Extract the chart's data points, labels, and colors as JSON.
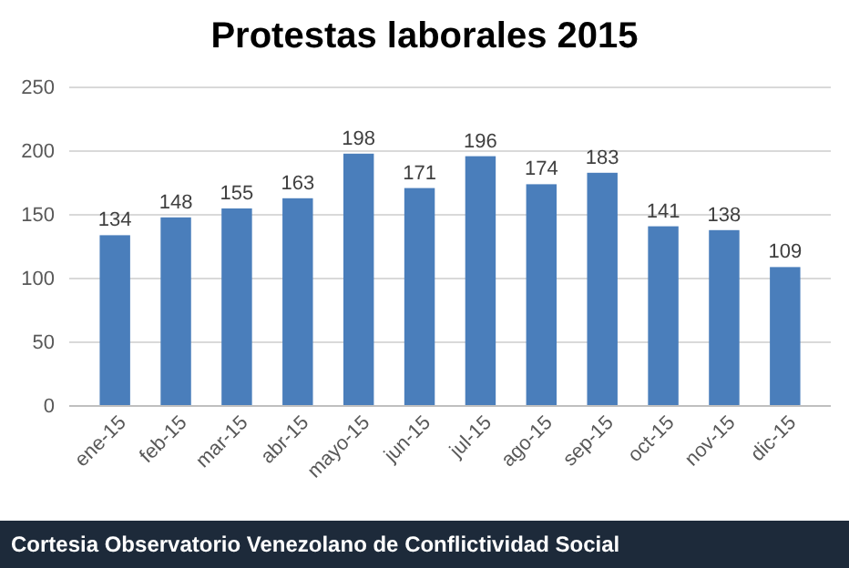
{
  "chart_data": {
    "type": "bar",
    "title": "Protestas laborales 2015",
    "categories": [
      "ene-15",
      "feb-15",
      "mar-15",
      "abr-15",
      "mayo-15",
      "jun-15",
      "jul-15",
      "ago-15",
      "sep-15",
      "oct-15",
      "nov-15",
      "dic-15"
    ],
    "values": [
      134,
      148,
      155,
      163,
      198,
      171,
      196,
      174,
      183,
      141,
      138,
      109
    ],
    "color": "#4a7ebb",
    "ylim": [
      0,
      250
    ],
    "yticks": [
      0,
      50,
      100,
      150,
      200,
      250
    ],
    "grid": "y",
    "data_labels": true,
    "annotations": [
      "Cortesia Observatorio Venezolano de Conflictividad Social"
    ]
  }
}
